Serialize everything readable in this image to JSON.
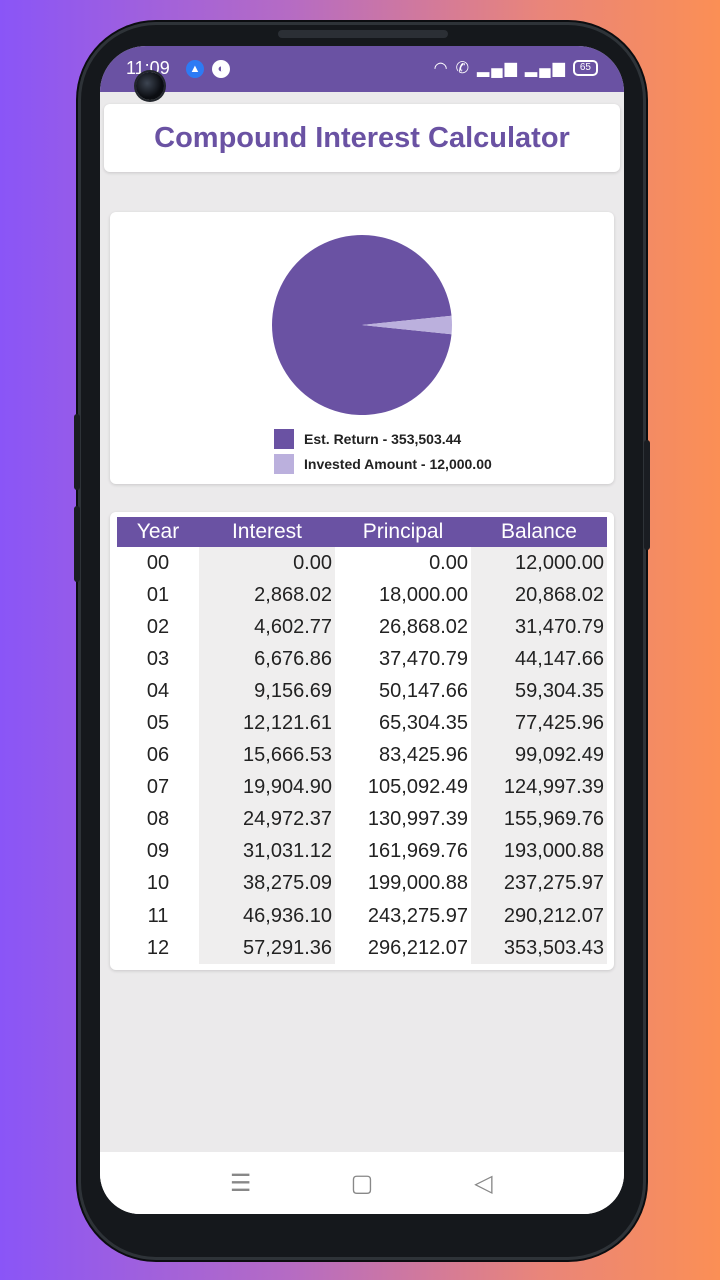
{
  "status_bar": {
    "time": "11:09",
    "battery": "65",
    "icons": [
      "android-icon",
      "app-icon",
      "wifi-icon",
      "call-icon",
      "signal-icon",
      "signal-icon",
      "battery-icon"
    ]
  },
  "header": {
    "title": "Compound Interest Calculator"
  },
  "colors": {
    "primary": "#6a52a3",
    "invested": "#bbb0dd",
    "background": "#ebeaeb"
  },
  "chart_data": {
    "type": "pie",
    "slices": [
      {
        "label": "Est. Return - 353,503.44",
        "value": 353503.44,
        "color": "#6a52a3"
      },
      {
        "label": "Invested Amount - 12,000.00",
        "value": 12000.0,
        "color": "#bbb0dd"
      }
    ]
  },
  "table": {
    "headers": [
      "Year",
      "Interest",
      "Principal",
      "Balance"
    ],
    "rows": [
      [
        "00",
        "0.00",
        "0.00",
        "12,000.00"
      ],
      [
        "01",
        "2,868.02",
        "18,000.00",
        "20,868.02"
      ],
      [
        "02",
        "4,602.77",
        "26,868.02",
        "31,470.79"
      ],
      [
        "03",
        "6,676.86",
        "37,470.79",
        "44,147.66"
      ],
      [
        "04",
        "9,156.69",
        "50,147.66",
        "59,304.35"
      ],
      [
        "05",
        "12,121.61",
        "65,304.35",
        "77,425.96"
      ],
      [
        "06",
        "15,666.53",
        "83,425.96",
        "99,092.49"
      ],
      [
        "07",
        "19,904.90",
        "105,092.49",
        "124,997.39"
      ],
      [
        "08",
        "24,972.37",
        "130,997.39",
        "155,969.76"
      ],
      [
        "09",
        "31,031.12",
        "161,969.76",
        "193,000.88"
      ],
      [
        "10",
        "38,275.09",
        "199,000.88",
        "237,275.97"
      ],
      [
        "11",
        "46,936.10",
        "243,275.97",
        "290,212.07"
      ],
      [
        "12",
        "57,291.36",
        "296,212.07",
        "353,503.43"
      ]
    ]
  },
  "navbar": {
    "menu_glyph": "☰",
    "home_glyph": "▢",
    "back_glyph": "◁"
  }
}
